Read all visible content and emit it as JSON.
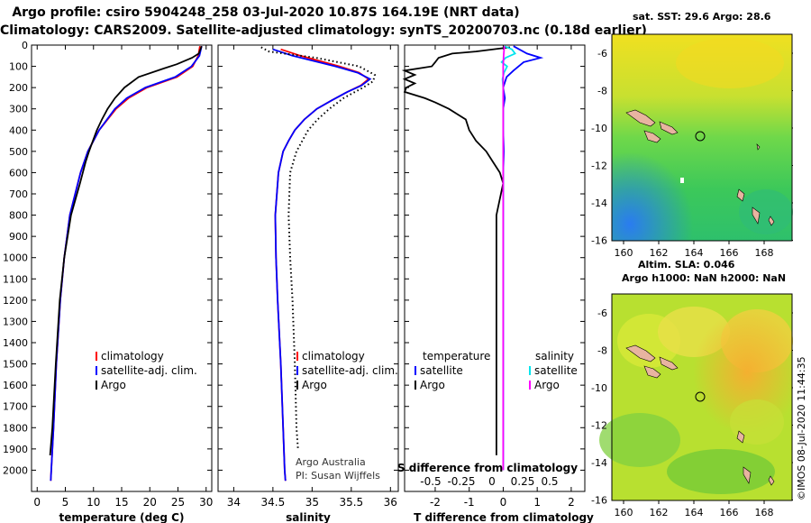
{
  "header": {
    "line1": "Argo profile: csiro 5904248_258 03-Jul-2020 10.87S 164.19E (NRT data)",
    "line2": "Climatology: CARS2009. Satellite-adjusted climatology: synTS_20200703.nc (0.18d earlier)"
  },
  "colors": {
    "argo": "#000000",
    "clim": "#ff0000",
    "sat": "#0000ff",
    "sal_sat": "#00e5ee",
    "sal_argo": "#ff00ff"
  },
  "chart_data": [
    {
      "type": "line",
      "id": "temperature",
      "title": "",
      "xlabel": "temperature (deg C)",
      "ylabel": "",
      "xlim": [
        -1,
        31
      ],
      "ylim": [
        2100,
        0
      ],
      "x_ticks": [
        "0",
        "5",
        "10",
        "15",
        "20",
        "25",
        "30"
      ],
      "y_ticks": [
        "0",
        "100",
        "200",
        "300",
        "400",
        "500",
        "600",
        "700",
        "800",
        "900",
        "1000",
        "1100",
        "1200",
        "1300",
        "1400",
        "1500",
        "1600",
        "1700",
        "1800",
        "1900",
        "2000"
      ],
      "series": [
        {
          "name": "climatology",
          "style": "solid",
          "color": "#ff0000",
          "depth": [
            5,
            50,
            100,
            150,
            200,
            250,
            300,
            400,
            500,
            600,
            800,
            1000,
            1200,
            1500,
            1800,
            2000,
            2050
          ],
          "values": [
            28.9,
            28.6,
            27.6,
            24.8,
            19.5,
            16.2,
            14.0,
            11.0,
            9.0,
            7.7,
            5.8,
            4.8,
            4.1,
            3.4,
            2.9,
            2.5,
            2.4
          ]
        },
        {
          "name": "satellite-adj. clim.",
          "style": "solid",
          "color": "#0000ff",
          "depth": [
            5,
            50,
            100,
            150,
            200,
            250,
            300,
            400,
            500,
            600,
            800,
            1000,
            1200,
            1500,
            1800,
            2000,
            2050
          ],
          "values": [
            29.2,
            28.8,
            27.4,
            24.5,
            19.2,
            15.9,
            13.8,
            11.0,
            9.0,
            7.7,
            5.8,
            4.8,
            4.1,
            3.4,
            2.9,
            2.5,
            2.4
          ]
        },
        {
          "name": "Argo",
          "style": "solid",
          "color": "#000000",
          "depth": [
            5,
            40,
            60,
            90,
            110,
            150,
            200,
            250,
            300,
            350,
            400,
            450,
            500,
            550,
            650,
            800,
            1000,
            1200,
            1500,
            1800,
            1930
          ],
          "values": [
            29.2,
            28.7,
            27.5,
            24.8,
            22.5,
            18.0,
            15.5,
            13.8,
            12.5,
            11.5,
            10.6,
            9.9,
            9.2,
            8.6,
            7.6,
            6.0,
            4.8,
            4.0,
            3.3,
            2.7,
            2.3
          ]
        }
      ],
      "legend": {
        "position": "lower-right",
        "items": [
          "climatology",
          "satellite-adj. clim.",
          "Argo"
        ]
      }
    },
    {
      "type": "line",
      "id": "salinity",
      "title": "",
      "xlabel": "salinity",
      "xlim": [
        33.8,
        36.1
      ],
      "ylim": [
        2100,
        0
      ],
      "x_ticks": [
        "34",
        "34.5",
        "35",
        "35.5",
        "36"
      ],
      "series": [
        {
          "name": "climatology",
          "style": "solid",
          "color": "#ff0000",
          "depth": [
            20,
            50,
            100,
            130,
            160,
            190,
            220,
            260,
            300,
            350,
            400,
            450,
            500,
            600,
            800,
            1000,
            1200,
            1500,
            1800,
            2000,
            2050
          ],
          "values": [
            34.6,
            34.85,
            35.35,
            35.6,
            35.72,
            35.62,
            35.45,
            35.25,
            35.06,
            34.9,
            34.78,
            34.7,
            34.63,
            34.57,
            34.53,
            34.54,
            34.56,
            34.6,
            34.63,
            34.65,
            34.66
          ]
        },
        {
          "name": "satellite-adj. clim.",
          "style": "solid",
          "color": "#0000ff",
          "depth": [
            20,
            50,
            100,
            130,
            160,
            190,
            220,
            260,
            300,
            350,
            400,
            450,
            500,
            600,
            800,
            1000,
            1200,
            1500,
            1800,
            2000,
            2050
          ],
          "values": [
            34.5,
            34.75,
            35.3,
            35.58,
            35.74,
            35.63,
            35.45,
            35.25,
            35.06,
            34.9,
            34.78,
            34.7,
            34.63,
            34.57,
            34.53,
            34.54,
            34.56,
            34.6,
            34.63,
            34.65,
            34.66
          ]
        },
        {
          "name": "Argo",
          "style": "dotted",
          "color": "#000000",
          "depth": [
            10,
            30,
            60,
            100,
            140,
            170,
            200,
            250,
            300,
            350,
            400,
            500,
            600,
            800,
            1000,
            1200,
            1500,
            1800,
            1900
          ],
          "values": [
            34.35,
            34.45,
            35.05,
            35.6,
            35.8,
            35.78,
            35.65,
            35.4,
            35.22,
            35.07,
            34.95,
            34.8,
            34.72,
            34.7,
            34.72,
            34.75,
            34.78,
            34.8,
            34.82
          ]
        }
      ],
      "legend": {
        "position": "lower-right",
        "items": [
          "climatology",
          "satellite-adj. clim.",
          "Argo"
        ]
      },
      "attribution": [
        "Argo Australia",
        "PI: Susan Wijffels"
      ]
    },
    {
      "type": "line",
      "id": "difference",
      "xlabel": "T difference from climatology",
      "xlabel_top": "S difference from climatology",
      "xlim": [
        -2.9,
        2.4
      ],
      "ylim": [
        2100,
        0
      ],
      "x_ticks": [
        "-2",
        "-1",
        "0",
        "1",
        "2"
      ],
      "s_ticks": [
        "-0.5",
        "-0.25",
        "0",
        "0.25",
        "0.5"
      ],
      "series": [
        {
          "name": "temperature satellite",
          "group": "temperature",
          "color": "#0000ff",
          "depth": [
            5,
            40,
            60,
            80,
            120,
            150,
            200,
            250,
            300,
            400,
            500,
            600,
            800,
            1000,
            1500,
            2000
          ],
          "values": [
            0.3,
            0.7,
            1.1,
            0.6,
            0.3,
            0.1,
            0.0,
            0.05,
            0.0,
            0.0,
            0.02,
            0.0,
            0.0,
            0.0,
            0.0,
            0.0
          ]
        },
        {
          "name": "temperature Argo",
          "group": "temperature",
          "color": "#000000",
          "depth": [
            10,
            30,
            40,
            60,
            80,
            100,
            120,
            140,
            160,
            180,
            200,
            220,
            250,
            270,
            300,
            350,
            400,
            450,
            500,
            550,
            600,
            650,
            800,
            1000,
            1500,
            1930
          ],
          "values": [
            0.2,
            -0.8,
            -1.5,
            -1.9,
            -2.0,
            -2.1,
            -2.9,
            -2.6,
            -2.9,
            -2.6,
            -2.85,
            -2.9,
            -2.3,
            -2.0,
            -1.6,
            -1.1,
            -1.0,
            -0.8,
            -0.5,
            -0.3,
            -0.1,
            0.0,
            -0.2,
            -0.2,
            -0.2,
            -0.2
          ]
        },
        {
          "name": "salinity satellite",
          "group": "salinity",
          "color": "#00e5ee",
          "depth": [
            5,
            20,
            40,
            60,
            80,
            100,
            130,
            160,
            200,
            300,
            400,
            500,
            800,
            1000,
            1500,
            2000
          ],
          "values": [
            0.03,
            0.22,
            0.3,
            0.06,
            -0.04,
            0.1,
            0.02,
            -0.02,
            0.0,
            0.0,
            0.0,
            0.0,
            0.0,
            0.0,
            0.0,
            0.0
          ]
        },
        {
          "name": "salinity Argo",
          "group": "salinity",
          "color": "#ff00ff",
          "depth": [
            5,
            50,
            100,
            150,
            200,
            300,
            400,
            600,
            800,
            1000,
            1500,
            2000
          ],
          "values": [
            0.03,
            0.01,
            0.0,
            0.0,
            0.0,
            0.0,
            0.0,
            0.0,
            0.0,
            0.0,
            0.0,
            0.0
          ]
        }
      ],
      "legend": {
        "temperature_title": "temperature",
        "salinity_title": "salinity",
        "temperature_items": [
          "satellite",
          "Argo"
        ],
        "salinity_items": [
          "satellite",
          "Argo"
        ]
      }
    }
  ],
  "maps": {
    "sst": {
      "label": "sat. SST: 29.6 Argo: 28.6",
      "y_ticks": [
        "-6",
        "-8",
        "-10",
        "-12",
        "-14",
        "-16"
      ],
      "x_ticks": [
        "160",
        "162",
        "164",
        "166",
        "168"
      ]
    },
    "sla": {
      "label1": "Altim. SLA: 0.046",
      "label2": "Argo h1000: NaN h2000: NaN",
      "y_ticks": [
        "-6",
        "-8",
        "-10",
        "-12",
        "-14",
        "-16"
      ],
      "x_ticks": [
        "160",
        "162",
        "164",
        "166",
        "168"
      ]
    }
  },
  "footer": {
    "stamp": "©IMOS 08-Jul-2020 11:44:35"
  }
}
